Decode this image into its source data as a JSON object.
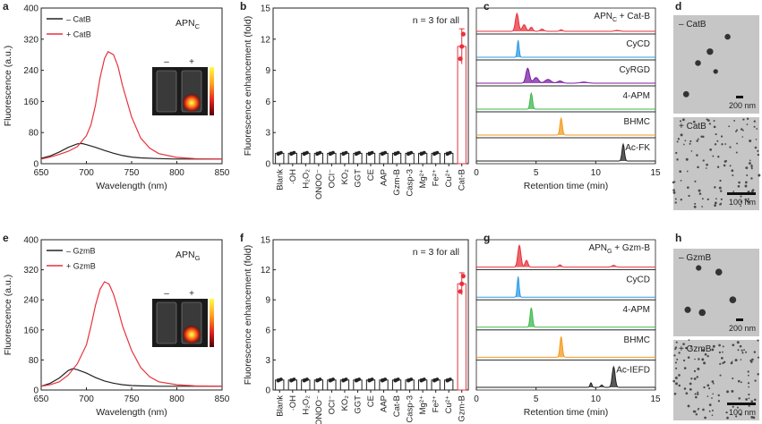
{
  "colors": {
    "red": "#e8323c",
    "black": "#222222",
    "blue": "#2b9be6",
    "purple": "#7a1fa2",
    "green": "#3cb84a",
    "orange": "#f59a1b",
    "grey": "#bcbcbc"
  },
  "panel_labels": [
    "a",
    "b",
    "c",
    "d",
    "e",
    "f",
    "g",
    "h"
  ],
  "chart_data": [
    {
      "id": "a",
      "type": "line",
      "xlabel": "Wavelength (nm)",
      "ylabel": "Fluorescence (a.u.)",
      "xlim": [
        650,
        850
      ],
      "ylim": [
        0,
        400
      ],
      "xticks": [
        650,
        700,
        750,
        800,
        850
      ],
      "yticks": [
        0,
        80,
        160,
        240,
        320,
        400
      ],
      "annotation": "APN",
      "annotation_sub": "C",
      "inset_labels": [
        "–",
        "+"
      ],
      "series": [
        {
          "name": "– CatB",
          "color": "black",
          "x": [
            650,
            660,
            670,
            680,
            690,
            695,
            700,
            710,
            720,
            730,
            740,
            750,
            760,
            780,
            800,
            820,
            850
          ],
          "y": [
            14,
            20,
            30,
            42,
            51,
            52,
            49,
            42,
            34,
            27,
            21,
            17,
            15,
            13,
            12,
            12,
            12
          ]
        },
        {
          "name": "+ CatB",
          "color": "red",
          "x": [
            650,
            660,
            670,
            680,
            690,
            700,
            705,
            710,
            715,
            720,
            724,
            730,
            735,
            740,
            750,
            760,
            770,
            780,
            800,
            820,
            850
          ],
          "y": [
            12,
            17,
            24,
            32,
            44,
            72,
            100,
            150,
            220,
            270,
            288,
            280,
            250,
            200,
            120,
            66,
            40,
            26,
            16,
            13,
            12
          ]
        }
      ]
    },
    {
      "id": "b",
      "type": "bar",
      "ylabel": "Fluorescence enhancement (fold)",
      "ylim": [
        0,
        15
      ],
      "yticks": [
        0,
        3,
        6,
        9,
        12,
        15
      ],
      "annotation": "n = 3 for all",
      "categories": [
        "Blank",
        "·OH",
        "H₂O₂",
        "ONOO⁻",
        "OCl⁻",
        "KO₂",
        "GGT",
        "CE",
        "AAP",
        "Gzm-B",
        "Casp-3",
        "Mg²⁺",
        "Fe²⁺",
        "Cu²⁺",
        "Cat-B"
      ],
      "values": [
        1,
        1,
        1,
        1,
        1,
        1,
        1,
        1,
        1,
        1,
        1,
        1,
        1,
        1,
        11.3
      ],
      "error": [
        0.1,
        0.1,
        0.1,
        0.1,
        0.1,
        0.1,
        0.1,
        0.1,
        0.1,
        0.1,
        0.1,
        0.1,
        0.1,
        0.1,
        1.7
      ],
      "highlight_index": 14
    },
    {
      "id": "c",
      "type": "line",
      "xlabel": "Retention time (min)",
      "xlim": [
        0,
        15
      ],
      "xticks": [
        0,
        5,
        10,
        15
      ],
      "traces": [
        {
          "name": "APN",
          "sub": "C",
          "suffix": " + Cat-B",
          "color": "red",
          "peaks": [
            [
              3.4,
              0.95,
              0.13
            ],
            [
              4.0,
              0.35,
              0.15
            ],
            [
              4.6,
              0.22,
              0.12
            ],
            [
              5.5,
              0.12,
              0.15
            ],
            [
              7.1,
              0.08,
              0.12
            ],
            [
              11.8,
              0.05,
              0.2
            ]
          ]
        },
        {
          "name": "CyCD",
          "color": "blue",
          "peaks": [
            [
              3.5,
              0.9,
              0.08
            ]
          ]
        },
        {
          "name": "CyRGD",
          "color": "purple",
          "peaks": [
            [
              4.3,
              0.8,
              0.15
            ],
            [
              5.0,
              0.3,
              0.2
            ],
            [
              6.0,
              0.2,
              0.25
            ],
            [
              7.0,
              0.12,
              0.2
            ],
            [
              9.0,
              0.06,
              0.3
            ]
          ]
        },
        {
          "name": "4-APM",
          "color": "green",
          "peaks": [
            [
              4.6,
              0.85,
              0.1
            ]
          ]
        },
        {
          "name": "BHMC",
          "color": "orange",
          "peaks": [
            [
              7.1,
              0.9,
              0.1
            ]
          ]
        },
        {
          "name": "Ac-FK",
          "color": "black",
          "peaks": [
            [
              12.3,
              0.9,
              0.1
            ]
          ]
        }
      ]
    },
    {
      "id": "e",
      "type": "line",
      "xlabel": "Wavelength (nm)",
      "ylabel": "Fluorescence (a.u.)",
      "xlim": [
        650,
        850
      ],
      "ylim": [
        0,
        400
      ],
      "xticks": [
        650,
        700,
        750,
        800,
        850
      ],
      "yticks": [
        0,
        80,
        160,
        240,
        320,
        400
      ],
      "annotation": "APN",
      "annotation_sub": "G",
      "inset_labels": [
        "–",
        "+"
      ],
      "series": [
        {
          "name": "– GzmB",
          "color": "black",
          "x": [
            650,
            660,
            670,
            680,
            685,
            690,
            700,
            710,
            720,
            730,
            740,
            750,
            760,
            780,
            800,
            820,
            850
          ],
          "y": [
            10,
            18,
            32,
            52,
            57,
            54,
            45,
            33,
            24,
            18,
            14,
            12,
            11,
            10,
            10,
            10,
            10
          ]
        },
        {
          "name": "+ GzmB",
          "color": "red",
          "x": [
            650,
            660,
            670,
            680,
            690,
            700,
            705,
            710,
            715,
            720,
            725,
            730,
            735,
            740,
            750,
            760,
            770,
            780,
            800,
            820,
            850
          ],
          "y": [
            10,
            14,
            22,
            40,
            70,
            120,
            170,
            225,
            268,
            288,
            282,
            255,
            215,
            170,
            105,
            60,
            35,
            22,
            14,
            11,
            10
          ]
        }
      ]
    },
    {
      "id": "f",
      "type": "bar",
      "ylabel": "Fluorescence enhancement (fold)",
      "ylim": [
        0,
        15
      ],
      "yticks": [
        0,
        3,
        6,
        9,
        12,
        15
      ],
      "annotation": "n = 3 for all",
      "categories": [
        "Blank",
        "·OH",
        "H₂O₂",
        "ONOO⁻",
        "OCl⁻",
        "KO₂",
        "GGT",
        "CE",
        "AAP",
        "Cat-B",
        "Casp-3",
        "Mg²⁺",
        "Fe²⁺",
        "Cu²⁺",
        "Gzm-B"
      ],
      "values": [
        1,
        1,
        1,
        1,
        1,
        1,
        1,
        1,
        1,
        1,
        1,
        1,
        1,
        1,
        10.6
      ],
      "error": [
        0.1,
        0.1,
        0.1,
        0.1,
        0.1,
        0.1,
        0.1,
        0.1,
        0.1,
        0.1,
        0.1,
        0.1,
        0.1,
        0.1,
        1.1
      ],
      "highlight_index": 14
    },
    {
      "id": "g",
      "type": "line",
      "xlabel": "Retention time (min)",
      "xlim": [
        0,
        15
      ],
      "xticks": [
        0,
        5,
        10,
        15
      ],
      "traces": [
        {
          "name": "APN",
          "sub": "G",
          "suffix": " + Gzm-B",
          "color": "red",
          "peaks": [
            [
              3.6,
              0.95,
              0.13
            ],
            [
              4.2,
              0.3,
              0.12
            ],
            [
              7.0,
              0.1,
              0.12
            ],
            [
              11.5,
              0.08,
              0.15
            ]
          ]
        },
        {
          "name": "CyCD",
          "color": "blue",
          "peaks": [
            [
              3.5,
              0.9,
              0.08
            ]
          ]
        },
        {
          "name": "4-APM",
          "color": "green",
          "peaks": [
            [
              4.6,
              0.85,
              0.1
            ]
          ]
        },
        {
          "name": "BHMC",
          "color": "orange",
          "peaks": [
            [
              7.1,
              0.9,
              0.1
            ]
          ]
        },
        {
          "name": "Ac-IEFD",
          "color": "black",
          "peaks": [
            [
              11.5,
              0.9,
              0.12
            ],
            [
              9.6,
              0.2,
              0.08
            ],
            [
              10.5,
              0.1,
              0.1
            ]
          ]
        }
      ]
    }
  ],
  "tem": {
    "d_top_label": "– CatB",
    "d_bottom_label": "+ CatB",
    "d_top_scale": "200 nm",
    "d_bottom_scale": "100 nm",
    "h_top_label": "– GzmB",
    "h_bottom_label": "+ GzmB",
    "h_top_scale": "200 nm",
    "h_bottom_scale": "100 nm"
  }
}
